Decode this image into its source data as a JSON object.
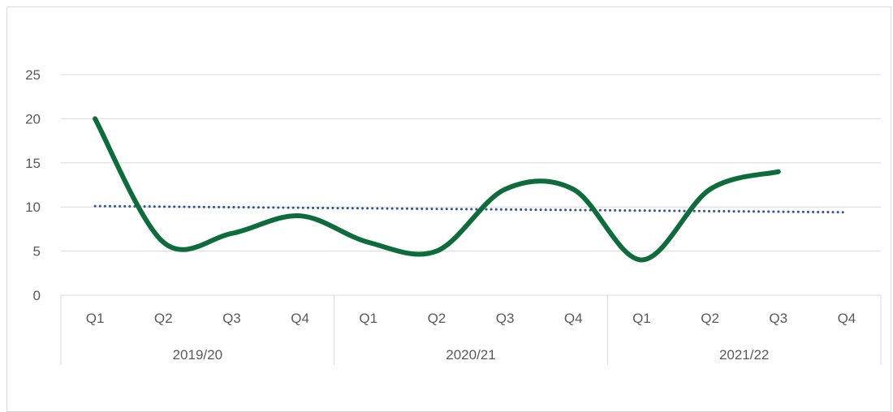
{
  "chart_data": {
    "type": "line",
    "title": "",
    "xlabel": "",
    "ylabel": "",
    "ylim": [
      0,
      25
    ],
    "yticks": [
      0,
      5,
      10,
      15,
      20,
      25
    ],
    "grid": true,
    "legend": "none",
    "categories": [
      "Q1",
      "Q2",
      "Q3",
      "Q4",
      "Q1",
      "Q2",
      "Q3",
      "Q4",
      "Q1",
      "Q2",
      "Q3",
      "Q4"
    ],
    "groups": [
      {
        "label": "2019/20",
        "span": 4
      },
      {
        "label": "2020/21",
        "span": 4
      },
      {
        "label": "2021/22",
        "span": 4
      }
    ],
    "series": [
      {
        "values": [
          20,
          6,
          7,
          9,
          6,
          5,
          12,
          12,
          4,
          12,
          14,
          null
        ],
        "color": "#0e6b3c",
        "smooth": true
      }
    ],
    "trendline": {
      "type": "linear",
      "color": "#2f5597",
      "style": "dotted",
      "start": 10.1,
      "end": 9.4
    }
  }
}
